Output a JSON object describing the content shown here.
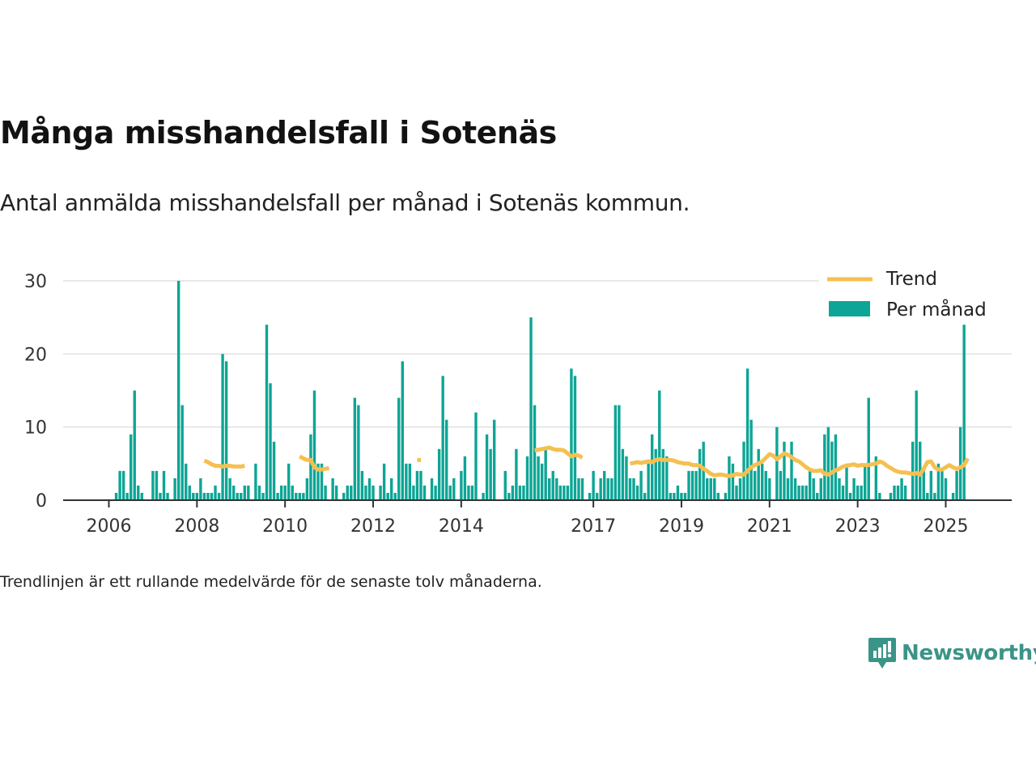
{
  "title": "Många misshandelsfall i Sotenäs",
  "subtitle": "Antal anmälda misshandelsfall per månad i Sotenäs kommun.",
  "footnote": "Trendlinjen är ett rullande medelvärde för de senaste tolv månaderna.",
  "brand": "Newsworthy",
  "colors": {
    "bar": "#0da595",
    "trend": "#f5c051",
    "grid": "#e0e0e0",
    "axis": "#333333",
    "brand": "#3a9487"
  },
  "chart_data": {
    "type": "bar",
    "start": "2006-01",
    "x_tick_labels": [
      "2006",
      "2008",
      "2010",
      "2012",
      "2014",
      "2017",
      "2019",
      "2021",
      "2023",
      "2025"
    ],
    "ylim": [
      0,
      30
    ],
    "y_ticks": [
      0,
      10,
      20,
      30
    ],
    "grid": true,
    "legend_position": "top-right",
    "series": [
      {
        "name": "Per månad",
        "type": "bar",
        "values": [
          0,
          0,
          1,
          4,
          4,
          1,
          9,
          15,
          2,
          1,
          0,
          0,
          4,
          4,
          1,
          4,
          1,
          0,
          3,
          30,
          13,
          5,
          2,
          1,
          1,
          3,
          1,
          1,
          1,
          2,
          1,
          20,
          19,
          3,
          2,
          1,
          1,
          2,
          2,
          0,
          5,
          2,
          1,
          24,
          16,
          8,
          1,
          2,
          2,
          5,
          2,
          1,
          1,
          1,
          3,
          9,
          15,
          5,
          5,
          2,
          0,
          3,
          2,
          0,
          1,
          2,
          2,
          14,
          13,
          4,
          2,
          3,
          2,
          0,
          2,
          5,
          1,
          3,
          1,
          14,
          19,
          5,
          5,
          2,
          4,
          4,
          2,
          0,
          3,
          2,
          7,
          17,
          11,
          2,
          3,
          0,
          4,
          6,
          2,
          2,
          12,
          0,
          1,
          9,
          7,
          11,
          0,
          0,
          4,
          1,
          2,
          7,
          2,
          2,
          6,
          25,
          13,
          6,
          5,
          7,
          3,
          4,
          3,
          2,
          2,
          2,
          18,
          17,
          3,
          3,
          0,
          1,
          4,
          1,
          3,
          4,
          3,
          3,
          13,
          13,
          7,
          6,
          3,
          3,
          2,
          4,
          1,
          5,
          9,
          7,
          15,
          7,
          6,
          1,
          1,
          2,
          1,
          1,
          4,
          4,
          4,
          7,
          8,
          3,
          3,
          3,
          1,
          0,
          1,
          6,
          5,
          2,
          3,
          8,
          18,
          11,
          4,
          7,
          5,
          4,
          3,
          0,
          10,
          4,
          8,
          3,
          8,
          3,
          2,
          2,
          2,
          4,
          3,
          1,
          3,
          9,
          10,
          8,
          9,
          3,
          2,
          5,
          1,
          3,
          2,
          2,
          5,
          14,
          0,
          6,
          1,
          0,
          0,
          1,
          2,
          2,
          3,
          2,
          0,
          8,
          15,
          8,
          4,
          1,
          4,
          1,
          5,
          4,
          3,
          0,
          1,
          4,
          10,
          24
        ]
      },
      {
        "name": "Trend",
        "type": "line",
        "values": [
          null,
          null,
          null,
          null,
          null,
          null,
          null,
          null,
          null,
          null,
          null,
          null,
          null,
          null,
          null,
          null,
          null,
          null,
          null,
          null,
          null,
          null,
          null,
          null,
          null,
          null,
          5.4,
          5.2,
          4.9,
          4.7,
          4.7,
          4.6,
          4.7,
          4.7,
          4.6,
          4.6,
          4.6,
          4.7,
          null,
          null,
          null,
          null,
          null,
          null,
          null,
          null,
          null,
          null,
          null,
          null,
          null,
          null,
          6.0,
          5.7,
          5.5,
          5.5,
          4.5,
          4.2,
          4.2,
          4.3,
          4.4,
          null,
          null,
          null,
          null,
          null,
          null,
          null,
          null,
          null,
          null,
          null,
          null,
          null,
          null,
          null,
          null,
          null,
          null,
          null,
          null,
          null,
          null,
          null,
          5.5,
          5.5,
          null,
          null,
          null,
          null,
          null,
          null,
          null,
          null,
          null,
          null,
          null,
          null,
          null,
          null,
          null,
          null,
          null,
          null,
          null,
          null,
          null,
          null,
          null,
          null,
          null,
          null,
          null,
          null,
          null,
          null,
          6.8,
          6.9,
          7.0,
          7.1,
          7.2,
          7.0,
          6.9,
          6.9,
          6.8,
          6.4,
          6.0,
          6.2,
          6.1,
          5.8,
          null,
          null,
          null,
          null,
          null,
          null,
          null,
          null,
          null,
          null,
          null,
          null,
          5.0,
          5.1,
          5.2,
          5.1,
          5.2,
          5.3,
          5.2,
          5.5,
          5.6,
          5.5,
          5.5,
          5.5,
          5.4,
          5.2,
          5.1,
          5.0,
          5.0,
          4.8,
          4.8,
          4.7,
          4.3,
          4.0,
          3.6,
          3.4,
          3.5,
          3.5,
          3.4,
          3.3,
          3.4,
          3.6,
          3.5,
          3.5,
          4.0,
          4.5,
          4.8,
          5.0,
          5.3,
          5.8,
          6.3,
          6.1,
          5.6,
          6.0,
          6.4,
          6.2,
          5.9,
          5.5,
          5.3,
          4.9,
          4.5,
          4.2,
          4.0,
          4.0,
          4.1,
          3.6,
          3.5,
          3.8,
          4.1,
          4.3,
          4.6,
          4.7,
          4.8,
          4.9,
          4.7,
          4.8,
          4.8,
          4.8,
          4.9,
          5.0,
          5.3,
          5.1,
          4.7,
          4.4,
          4.1,
          3.9,
          3.8,
          3.8,
          3.7,
          3.6,
          3.7,
          3.5,
          4.3,
          5.2,
          5.3,
          4.5,
          4.2,
          4.2,
          4.5,
          4.8,
          4.5,
          4.3,
          4.5,
          4.8,
          5.7
        ]
      }
    ]
  }
}
